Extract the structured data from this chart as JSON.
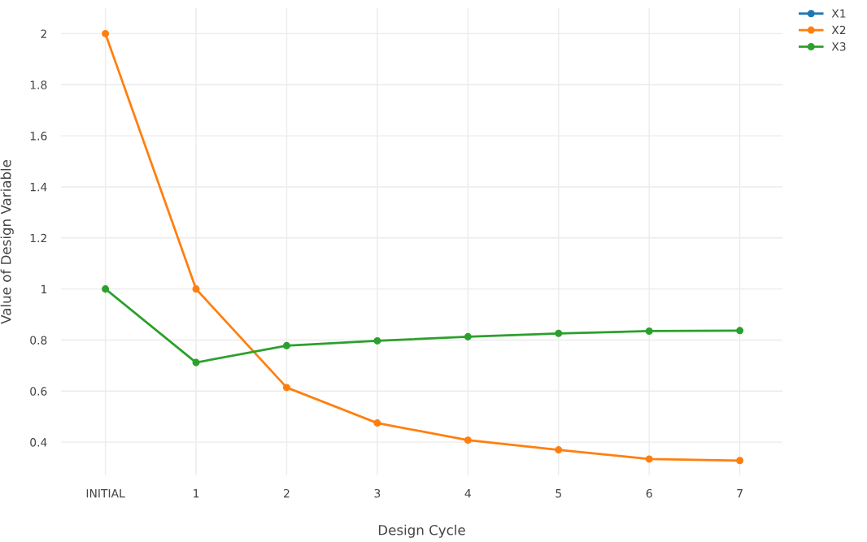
{
  "chart_data": {
    "type": "line",
    "xlabel": "Design Cycle",
    "ylabel": "Value of Design Variable",
    "categories": [
      "INITIAL",
      "1",
      "2",
      "3",
      "4",
      "5",
      "6",
      "7"
    ],
    "series": [
      {
        "name": "X1",
        "color": "#1f77b4",
        "values": [
          null,
          null,
          null,
          null,
          null,
          null,
          null,
          null
        ]
      },
      {
        "name": "X2",
        "color": "#ff7f0e",
        "values": [
          2,
          1,
          0.614,
          0.475,
          0.408,
          0.37,
          0.334,
          0.328
        ]
      },
      {
        "name": "X3",
        "color": "#2ca02c",
        "values": [
          1,
          0.712,
          0.778,
          0.797,
          0.813,
          0.826,
          0.835,
          0.837
        ]
      }
    ],
    "ylim": [
      0.27,
      2.1
    ],
    "yticks": [
      0.4,
      0.6,
      0.8,
      1,
      1.2,
      1.4,
      1.6,
      1.8,
      2
    ],
    "grid": true,
    "legend": "top right",
    "marker": "circle",
    "line_style": "solid"
  }
}
